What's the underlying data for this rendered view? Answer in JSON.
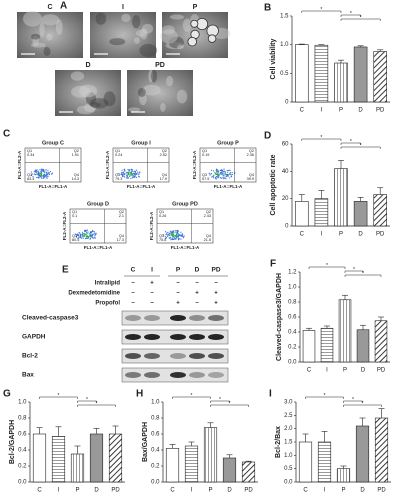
{
  "figure": {
    "A": {
      "letter": "A",
      "images": [
        "C",
        "I",
        "P",
        "D",
        "PD"
      ]
    },
    "C": {
      "letter": "C",
      "xlabel": "FL1-A::FL1-A",
      "ylabel": "FL2-A::FL2-A",
      "quadrants": [
        "Q1",
        "Q2",
        "Q3",
        "Q4"
      ],
      "plots": [
        {
          "title": "Group C",
          "values": [
            0.34,
            1.91,
            83.4,
            14.3
          ]
        },
        {
          "title": "Group I",
          "values": [
            0.24,
            2.52,
            79.3,
            17.9
          ]
        },
        {
          "title": "Group P",
          "values": [
            0.19,
            2.36,
            57.5,
            39.9
          ]
        },
        {
          "title": "Group D",
          "values": [
            0.1,
            2.1,
            80.5,
            17.3
          ]
        },
        {
          "title": "Group PD",
          "values": [
            0.26,
            2.43,
            75.8,
            21.5
          ]
        }
      ]
    },
    "E": {
      "letter": "E",
      "lanes": [
        "C",
        "I",
        "P",
        "D",
        "PD"
      ],
      "treatments": [
        {
          "name": "Intralipid",
          "signs": [
            "−",
            "+",
            "−",
            "−",
            "−"
          ]
        },
        {
          "name": "Dexmedetomidine",
          "signs": [
            "−",
            "−",
            "−",
            "+",
            "+"
          ]
        },
        {
          "name": "Propofol",
          "signs": [
            "−",
            "−",
            "+",
            "−",
            "+"
          ]
        }
      ],
      "bands": [
        "Cleaved-caspase3",
        "GAPDH",
        "Bcl-2",
        "Bax"
      ]
    }
  },
  "chart_data": [
    {
      "type": "bar",
      "panel": "B",
      "ylabel": "Cell viability",
      "categories": [
        "C",
        "I",
        "P",
        "D",
        "PD"
      ],
      "values": [
        1.0,
        0.99,
        0.68,
        0.96,
        0.88
      ],
      "errors": [
        0.01,
        0.01,
        0.05,
        0.02,
        0.03
      ],
      "ylim": [
        0,
        1.5
      ],
      "yticks": [
        0,
        0.5,
        {
          "value": 1,
          "label": "1.0"
        },
        1.5
      ],
      "significance": [
        "*",
        "*",
        "*"
      ]
    },
    {
      "type": "bar",
      "panel": "D",
      "ylabel": "Cell apoptotic rate",
      "categories": [
        "C",
        "I",
        "P",
        "D",
        "PD"
      ],
      "values": [
        18,
        20,
        42,
        18,
        23
      ],
      "errors": [
        5,
        6,
        6,
        3,
        5
      ],
      "ylim": [
        0,
        60
      ],
      "yticks": [
        0,
        20,
        40,
        60
      ],
      "significance": [
        "*",
        "*",
        "*"
      ]
    },
    {
      "type": "bar",
      "panel": "F",
      "ylabel": "Cleaved-caspase3/GAPDH",
      "categories": [
        "C",
        "I",
        "P",
        "D",
        "PD"
      ],
      "values": [
        0.42,
        0.45,
        0.83,
        0.43,
        0.55
      ],
      "errors": [
        0.03,
        0.03,
        0.06,
        0.06,
        0.05
      ],
      "ylim": [
        0,
        1.2
      ],
      "yticks": [
        {
          "value": 0,
          "label": "0.0"
        },
        0.2,
        0.4,
        0.6,
        0.8,
        {
          "value": 1,
          "label": "1.0"
        },
        1.2
      ],
      "significance": [
        "*",
        "*",
        "*"
      ]
    },
    {
      "type": "bar",
      "panel": "G",
      "ylabel": "Bcl-2/GAPDH",
      "categories": [
        "C",
        "I",
        "P",
        "D",
        "PD"
      ],
      "values": [
        0.6,
        0.57,
        0.35,
        0.6,
        0.6
      ],
      "errors": [
        0.08,
        0.12,
        0.1,
        0.07,
        0.1
      ],
      "ylim": [
        0,
        1
      ],
      "yticks": [
        {
          "value": 0,
          "label": "0.0"
        },
        0.2,
        0.4,
        0.6,
        0.8,
        {
          "value": 1,
          "label": "1.0"
        }
      ],
      "significance": [
        "*",
        "*",
        "*"
      ]
    },
    {
      "type": "bar",
      "panel": "H",
      "ylabel": "Bax/GAPDH",
      "categories": [
        "C",
        "I",
        "P",
        "D",
        "PD"
      ],
      "values": [
        0.42,
        0.45,
        0.68,
        0.3,
        0.25
      ],
      "errors": [
        0.05,
        0.05,
        0.06,
        0.04,
        0.01
      ],
      "ylim": [
        0,
        1
      ],
      "yticks": [
        {
          "value": 0,
          "label": "0.0"
        },
        0.2,
        0.4,
        0.6,
        0.8,
        {
          "value": 1,
          "label": "1.0"
        }
      ],
      "significance": [
        "*",
        "*",
        "*"
      ]
    },
    {
      "type": "bar",
      "panel": "I",
      "ylabel": "Bcl-2/Bax",
      "categories": [
        "C",
        "I",
        "P",
        "D",
        "PD"
      ],
      "values": [
        1.5,
        1.5,
        0.5,
        2.1,
        2.4
      ],
      "errors": [
        0.3,
        0.4,
        0.1,
        0.3,
        0.35
      ],
      "ylim": [
        0,
        3
      ],
      "yticks": [
        {
          "value": 0,
          "label": "0.0"
        },
        0.5,
        {
          "value": 1,
          "label": "1.0"
        },
        1.5,
        {
          "value": 2,
          "label": "2.0"
        },
        2.5,
        {
          "value": 3,
          "label": "3.0"
        }
      ],
      "significance": [
        "*",
        "*",
        "*"
      ]
    }
  ]
}
